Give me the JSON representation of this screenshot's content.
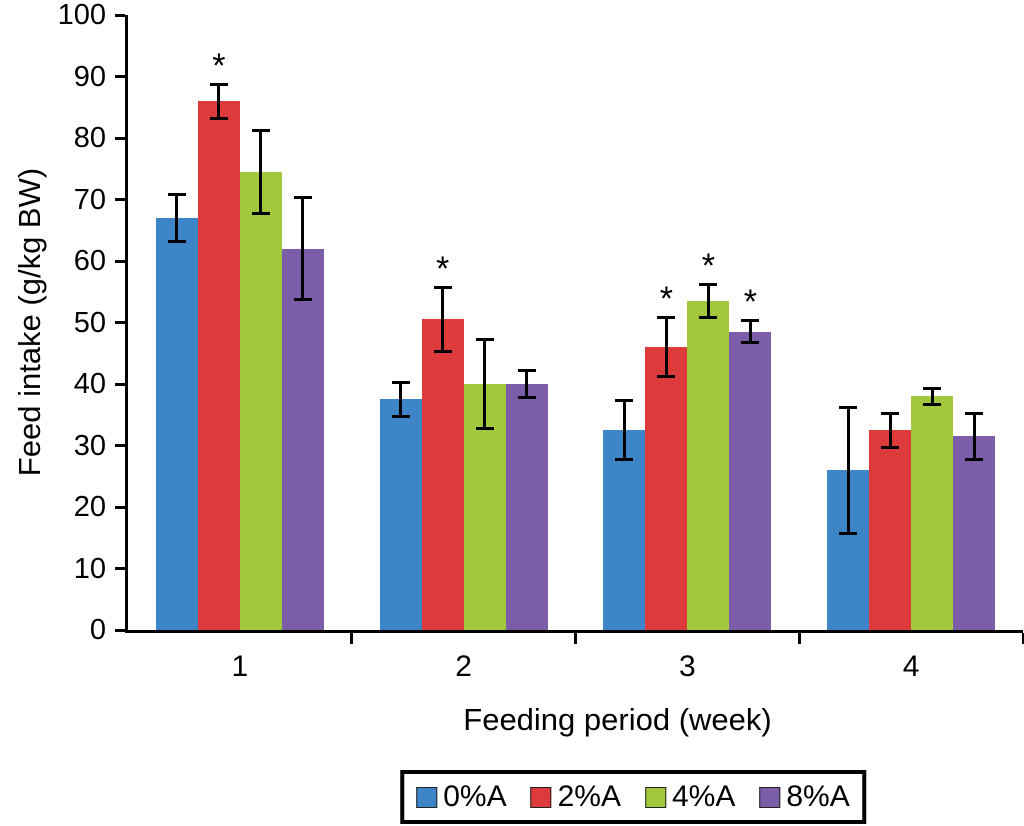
{
  "chart_data": {
    "type": "bar",
    "title": "",
    "xlabel": "Feeding period (week)",
    "ylabel": "Feed intake (g/kg BW)",
    "ylim": [
      0,
      100
    ],
    "ytick_interval": 10,
    "grid": false,
    "legend_position": "bottom",
    "annotation_symbol": "*",
    "categories": [
      "1",
      "2",
      "3",
      "4"
    ],
    "series": [
      {
        "name": "0%A",
        "color": "#3d85c6",
        "values": [
          67,
          37.5,
          32.5,
          26
        ],
        "errors": [
          4,
          3,
          5,
          10.5
        ],
        "asterisks": [
          false,
          false,
          false,
          false
        ]
      },
      {
        "name": "2%A",
        "color": "#dd3a3b",
        "values": [
          86,
          50.5,
          46,
          32.5
        ],
        "errors": [
          3,
          5.5,
          5,
          3
        ],
        "asterisks": [
          true,
          true,
          true,
          false
        ]
      },
      {
        "name": "4%A",
        "color": "#a2c83d",
        "values": [
          74.5,
          40,
          53.5,
          38
        ],
        "errors": [
          7,
          7.5,
          3,
          1.5
        ],
        "asterisks": [
          false,
          false,
          true,
          false
        ]
      },
      {
        "name": "8%A",
        "color": "#7b5ea7",
        "values": [
          62,
          40,
          48.5,
          31.5
        ],
        "errors": [
          8.5,
          2.5,
          2,
          4
        ],
        "asterisks": [
          false,
          false,
          true,
          false
        ]
      }
    ]
  }
}
